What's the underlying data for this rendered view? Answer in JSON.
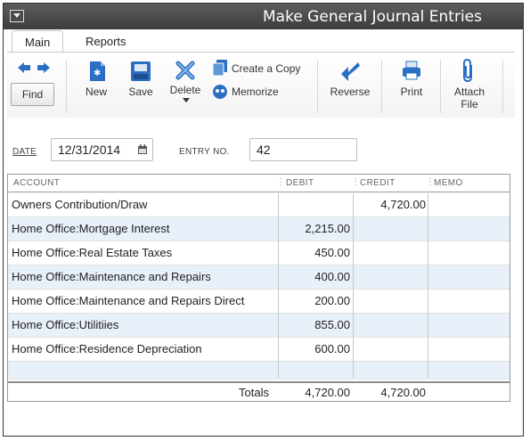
{
  "window": {
    "title": "Make General Journal Entries"
  },
  "tabs": [
    {
      "label": "Main"
    },
    {
      "label": "Reports"
    }
  ],
  "toolbar": {
    "find": "Find",
    "new": "New",
    "save": "Save",
    "delete": "Delete",
    "create_copy": "Create a Copy",
    "memorize": "Memorize",
    "reverse": "Reverse",
    "print": "Print",
    "attach_file": "Attach File"
  },
  "form": {
    "date_label": "DATE",
    "date_value": "12/31/2014",
    "entry_no_label": "ENTRY NO.",
    "entry_no_value": "42"
  },
  "grid": {
    "columns": [
      "ACCOUNT",
      "DEBIT",
      "CREDIT",
      "MEMO"
    ],
    "rows": [
      {
        "account": "Owners Contribution/Draw",
        "debit": "",
        "credit": "4,720.00",
        "memo": ""
      },
      {
        "account": "Home Office:Mortgage Interest",
        "debit": "2,215.00",
        "credit": "",
        "memo": ""
      },
      {
        "account": "Home Office:Real Estate Taxes",
        "debit": "450.00",
        "credit": "",
        "memo": ""
      },
      {
        "account": "Home Office:Maintenance and Repairs",
        "debit": "400.00",
        "credit": "",
        "memo": ""
      },
      {
        "account": "Home Office:Maintenance and Repairs Direct",
        "debit": "200.00",
        "credit": "",
        "memo": ""
      },
      {
        "account": "Home Office:Utilitiies",
        "debit": "855.00",
        "credit": "",
        "memo": ""
      },
      {
        "account": "Home Office:Residence Depreciation",
        "debit": "600.00",
        "credit": "",
        "memo": ""
      },
      {
        "account": "",
        "debit": "",
        "credit": "",
        "memo": ""
      }
    ],
    "totals_label": "Totals",
    "total_debit": "4,720.00",
    "total_credit": "4,720.00"
  },
  "colors": {
    "titlebar": "#4a4a4a",
    "row_alt": "#e8f0fa",
    "icon_blue": "#2a6fc4"
  }
}
